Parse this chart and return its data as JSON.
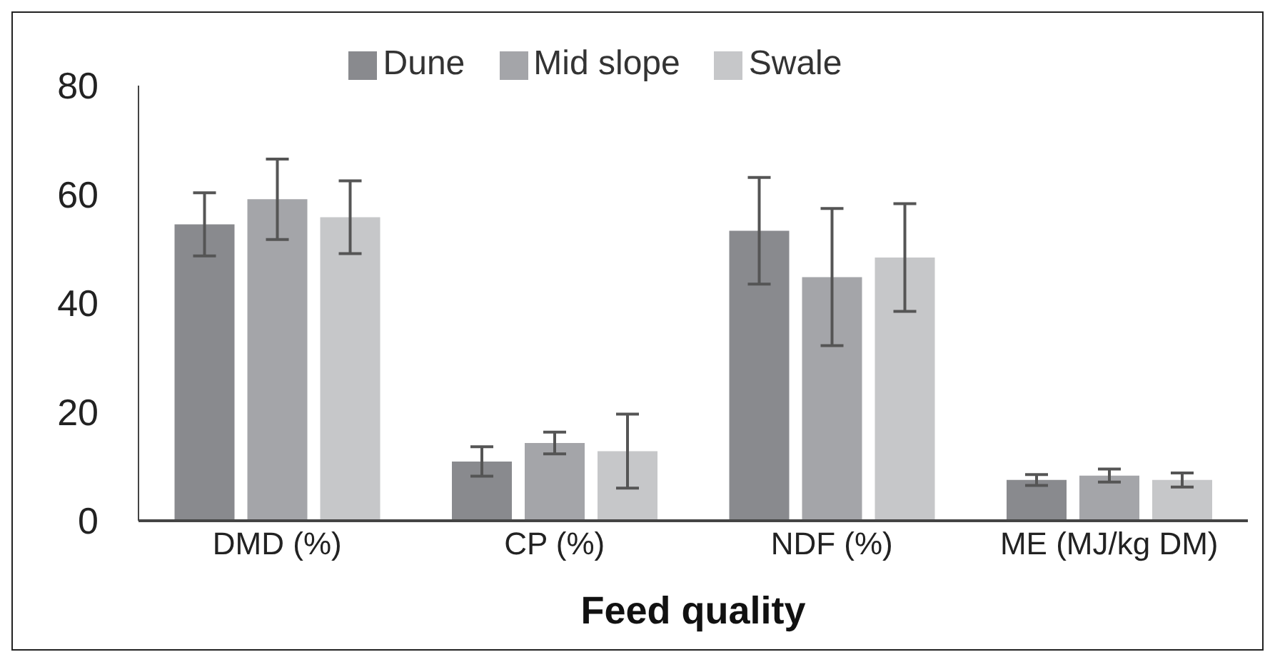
{
  "chart_data": {
    "type": "bar",
    "xlabel": "Feed quality",
    "categories": [
      "DMD (%)",
      "CP (%)",
      "NDF (%)",
      "ME (MJ/kg DM)"
    ],
    "series": [
      {
        "name": "Dune",
        "color": "#898a8e",
        "values": [
          54.5,
          10.9,
          53.3,
          7.5
        ],
        "errors": [
          5.8,
          2.7,
          9.8,
          1.0
        ]
      },
      {
        "name": "Mid slope",
        "color": "#a4a5a9",
        "values": [
          59.1,
          14.3,
          44.8,
          8.3
        ],
        "errors": [
          7.4,
          2.0,
          12.6,
          1.2
        ]
      },
      {
        "name": "Swale",
        "color": "#c6c7c9",
        "values": [
          55.8,
          12.8,
          48.4,
          7.5
        ],
        "errors": [
          6.7,
          6.8,
          9.9,
          1.3
        ]
      }
    ],
    "ylim": [
      0,
      80
    ],
    "yticks": [
      0,
      20,
      40,
      60,
      80
    ],
    "grid": false,
    "legend": "top"
  }
}
